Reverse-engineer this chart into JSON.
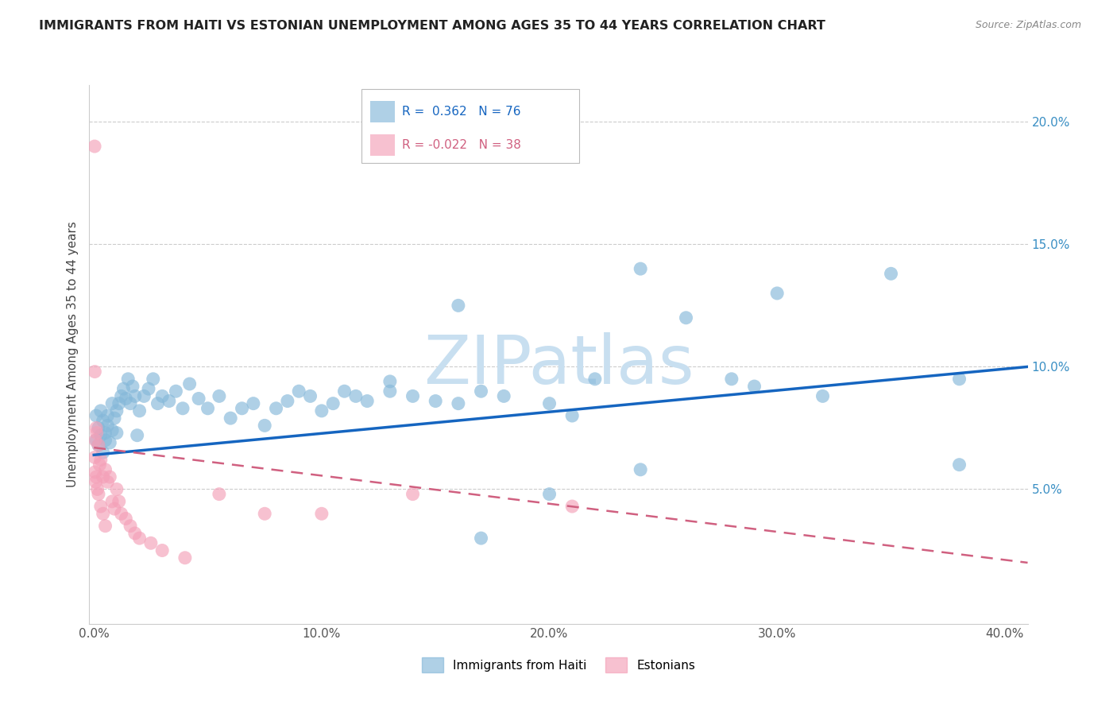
{
  "title": "IMMIGRANTS FROM HAITI VS ESTONIAN UNEMPLOYMENT AMONG AGES 35 TO 44 YEARS CORRELATION CHART",
  "source": "Source: ZipAtlas.com",
  "ylabel": "Unemployment Among Ages 35 to 44 years",
  "xlim": [
    -0.002,
    0.41
  ],
  "ylim": [
    -0.005,
    0.215
  ],
  "xticks": [
    0.0,
    0.1,
    0.2,
    0.3,
    0.4
  ],
  "xtick_labels": [
    "0.0%",
    "10.0%",
    "20.0%",
    "30.0%",
    "40.0%"
  ],
  "yticks": [
    0.05,
    0.1,
    0.15,
    0.2
  ],
  "ytick_labels": [
    "5.0%",
    "10.0%",
    "15.0%",
    "20.0%"
  ],
  "legend_r1": "R =  0.362",
  "legend_n1": "N = 76",
  "legend_r2": "R = -0.022",
  "legend_n2": "N = 38",
  "blue_color": "#85b8d9",
  "pink_color": "#f4a0b8",
  "trend_blue": "#1565c0",
  "trend_pink": "#d06080",
  "watermark_color": "#c8dff0",
  "watermark": "ZIPatlas",
  "blue_trend_x0": 0.0,
  "blue_trend_x1": 0.41,
  "blue_trend_y0": 0.064,
  "blue_trend_y1": 0.1,
  "pink_trend_x0": 0.0,
  "pink_trend_x1": 0.41,
  "pink_trend_y0": 0.067,
  "pink_trend_y1": 0.02,
  "haiti_x": [
    0.001,
    0.001,
    0.002,
    0.002,
    0.003,
    0.003,
    0.004,
    0.004,
    0.005,
    0.005,
    0.006,
    0.006,
    0.007,
    0.008,
    0.008,
    0.009,
    0.01,
    0.01,
    0.011,
    0.012,
    0.013,
    0.014,
    0.015,
    0.016,
    0.017,
    0.018,
    0.019,
    0.02,
    0.022,
    0.024,
    0.026,
    0.028,
    0.03,
    0.033,
    0.036,
    0.039,
    0.042,
    0.046,
    0.05,
    0.055,
    0.06,
    0.065,
    0.07,
    0.075,
    0.08,
    0.085,
    0.09,
    0.095,
    0.1,
    0.105,
    0.11,
    0.115,
    0.12,
    0.13,
    0.14,
    0.15,
    0.16,
    0.17,
    0.18,
    0.2,
    0.21,
    0.22,
    0.24,
    0.26,
    0.28,
    0.3,
    0.32,
    0.35,
    0.38,
    0.16,
    0.24,
    0.29,
    0.2,
    0.13,
    0.17,
    0.38
  ],
  "haiti_y": [
    0.07,
    0.08,
    0.068,
    0.075,
    0.072,
    0.082,
    0.065,
    0.078,
    0.073,
    0.07,
    0.076,
    0.08,
    0.069,
    0.074,
    0.085,
    0.079,
    0.073,
    0.082,
    0.085,
    0.088,
    0.091,
    0.087,
    0.095,
    0.085,
    0.092,
    0.088,
    0.072,
    0.082,
    0.088,
    0.091,
    0.095,
    0.085,
    0.088,
    0.086,
    0.09,
    0.083,
    0.093,
    0.087,
    0.083,
    0.088,
    0.079,
    0.083,
    0.085,
    0.076,
    0.083,
    0.086,
    0.09,
    0.088,
    0.082,
    0.085,
    0.09,
    0.088,
    0.086,
    0.09,
    0.088,
    0.086,
    0.085,
    0.09,
    0.088,
    0.085,
    0.08,
    0.095,
    0.14,
    0.12,
    0.095,
    0.13,
    0.088,
    0.138,
    0.095,
    0.125,
    0.058,
    0.092,
    0.048,
    0.094,
    0.03,
    0.06
  ],
  "estonian_x": [
    0.0003,
    0.0004,
    0.0005,
    0.0006,
    0.0008,
    0.001,
    0.001,
    0.0012,
    0.0015,
    0.002,
    0.002,
    0.0025,
    0.003,
    0.003,
    0.004,
    0.004,
    0.005,
    0.005,
    0.006,
    0.007,
    0.008,
    0.009,
    0.01,
    0.011,
    0.012,
    0.014,
    0.016,
    0.018,
    0.02,
    0.025,
    0.03,
    0.04,
    0.055,
    0.075,
    0.1,
    0.14,
    0.21,
    0.0004
  ],
  "estonian_y": [
    0.19,
    0.063,
    0.057,
    0.07,
    0.053,
    0.055,
    0.075,
    0.073,
    0.05,
    0.068,
    0.048,
    0.06,
    0.062,
    0.043,
    0.055,
    0.04,
    0.058,
    0.035,
    0.053,
    0.055,
    0.045,
    0.042,
    0.05,
    0.045,
    0.04,
    0.038,
    0.035,
    0.032,
    0.03,
    0.028,
    0.025,
    0.022,
    0.048,
    0.04,
    0.04,
    0.048,
    0.043,
    0.098
  ]
}
